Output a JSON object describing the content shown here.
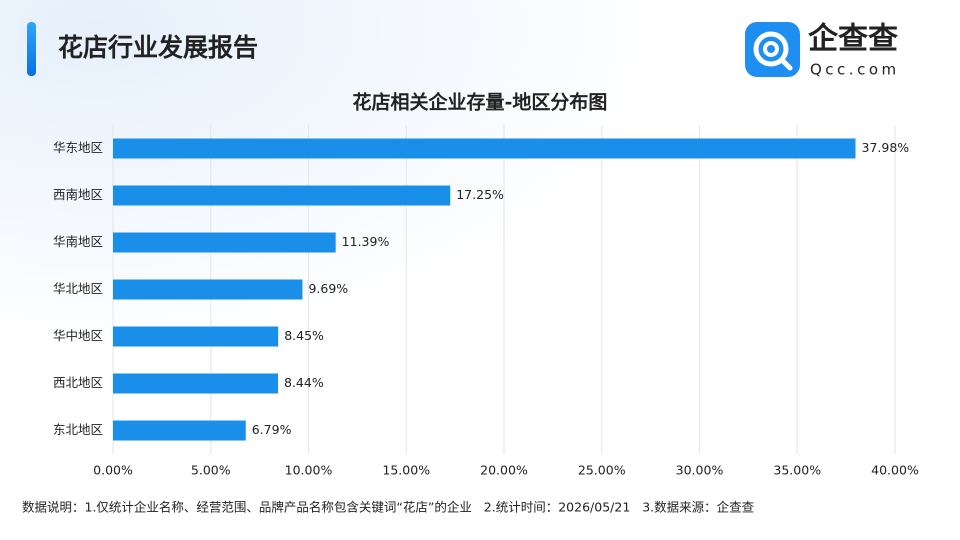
{
  "header": {
    "title": "花店行业发展报告",
    "logo_text": "企查查",
    "logo_sub": "Qcc.com"
  },
  "footer": {
    "note": "数据说明：1.仅统计企业名称、经营范围、品牌产品名称包含关键词“花店”的企业   2.统计时间：2026/05/21   3.数据来源：企查查"
  },
  "chart_data": {
    "type": "bar",
    "orientation": "horizontal",
    "title": "花店相关企业存量-地区分布图",
    "categories": [
      "华东地区",
      "西南地区",
      "华南地区",
      "华北地区",
      "华中地区",
      "西北地区",
      "东北地区"
    ],
    "values": [
      37.98,
      17.25,
      11.39,
      9.69,
      8.45,
      8.44,
      6.79
    ],
    "value_labels": [
      "37.98%",
      "17.25%",
      "11.39%",
      "9.69%",
      "8.45%",
      "8.44%",
      "6.79%"
    ],
    "color": "#1a8fea",
    "xlim": [
      0,
      40
    ],
    "xticks": [
      {
        "value": 0,
        "label": "0.00%"
      },
      {
        "value": 5,
        "label": "5.00%"
      },
      {
        "value": 10,
        "label": "10.00%"
      },
      {
        "value": 15,
        "label": "15.00%"
      },
      {
        "value": 20,
        "label": "20.00%"
      },
      {
        "value": 25,
        "label": "25.00%"
      },
      {
        "value": 30,
        "label": "30.00%"
      },
      {
        "value": 35,
        "label": "35.00%"
      },
      {
        "value": 40,
        "label": "40.00%"
      }
    ],
    "grid": true
  }
}
